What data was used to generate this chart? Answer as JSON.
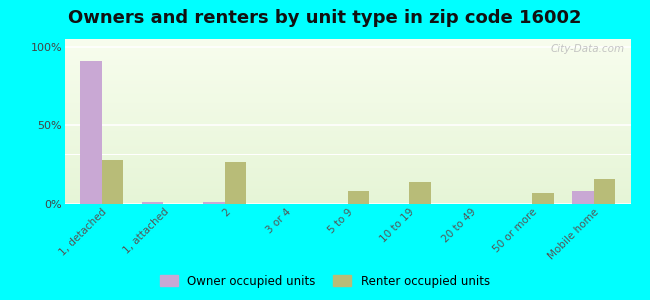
{
  "title": "Owners and renters by unit type in zip code 16002",
  "categories": [
    "1, detached",
    "1, attached",
    "2",
    "3 or 4",
    "5 to 9",
    "10 to 19",
    "20 to 49",
    "50 or more",
    "Mobile home"
  ],
  "owner_values": [
    91,
    1,
    1,
    0,
    0,
    0,
    0,
    0,
    8
  ],
  "renter_values": [
    28,
    0,
    27,
    0,
    8,
    14,
    0,
    7,
    16
  ],
  "owner_color": "#c9a8d4",
  "renter_color": "#b8bc78",
  "background_color": "#00ffff",
  "title_fontsize": 13,
  "ylabel_ticks": [
    "0%",
    "50%",
    "100%"
  ],
  "ytick_vals": [
    0,
    50,
    100
  ],
  "ylim": [
    0,
    105
  ],
  "bar_width": 0.35,
  "watermark": "City-Data.com"
}
